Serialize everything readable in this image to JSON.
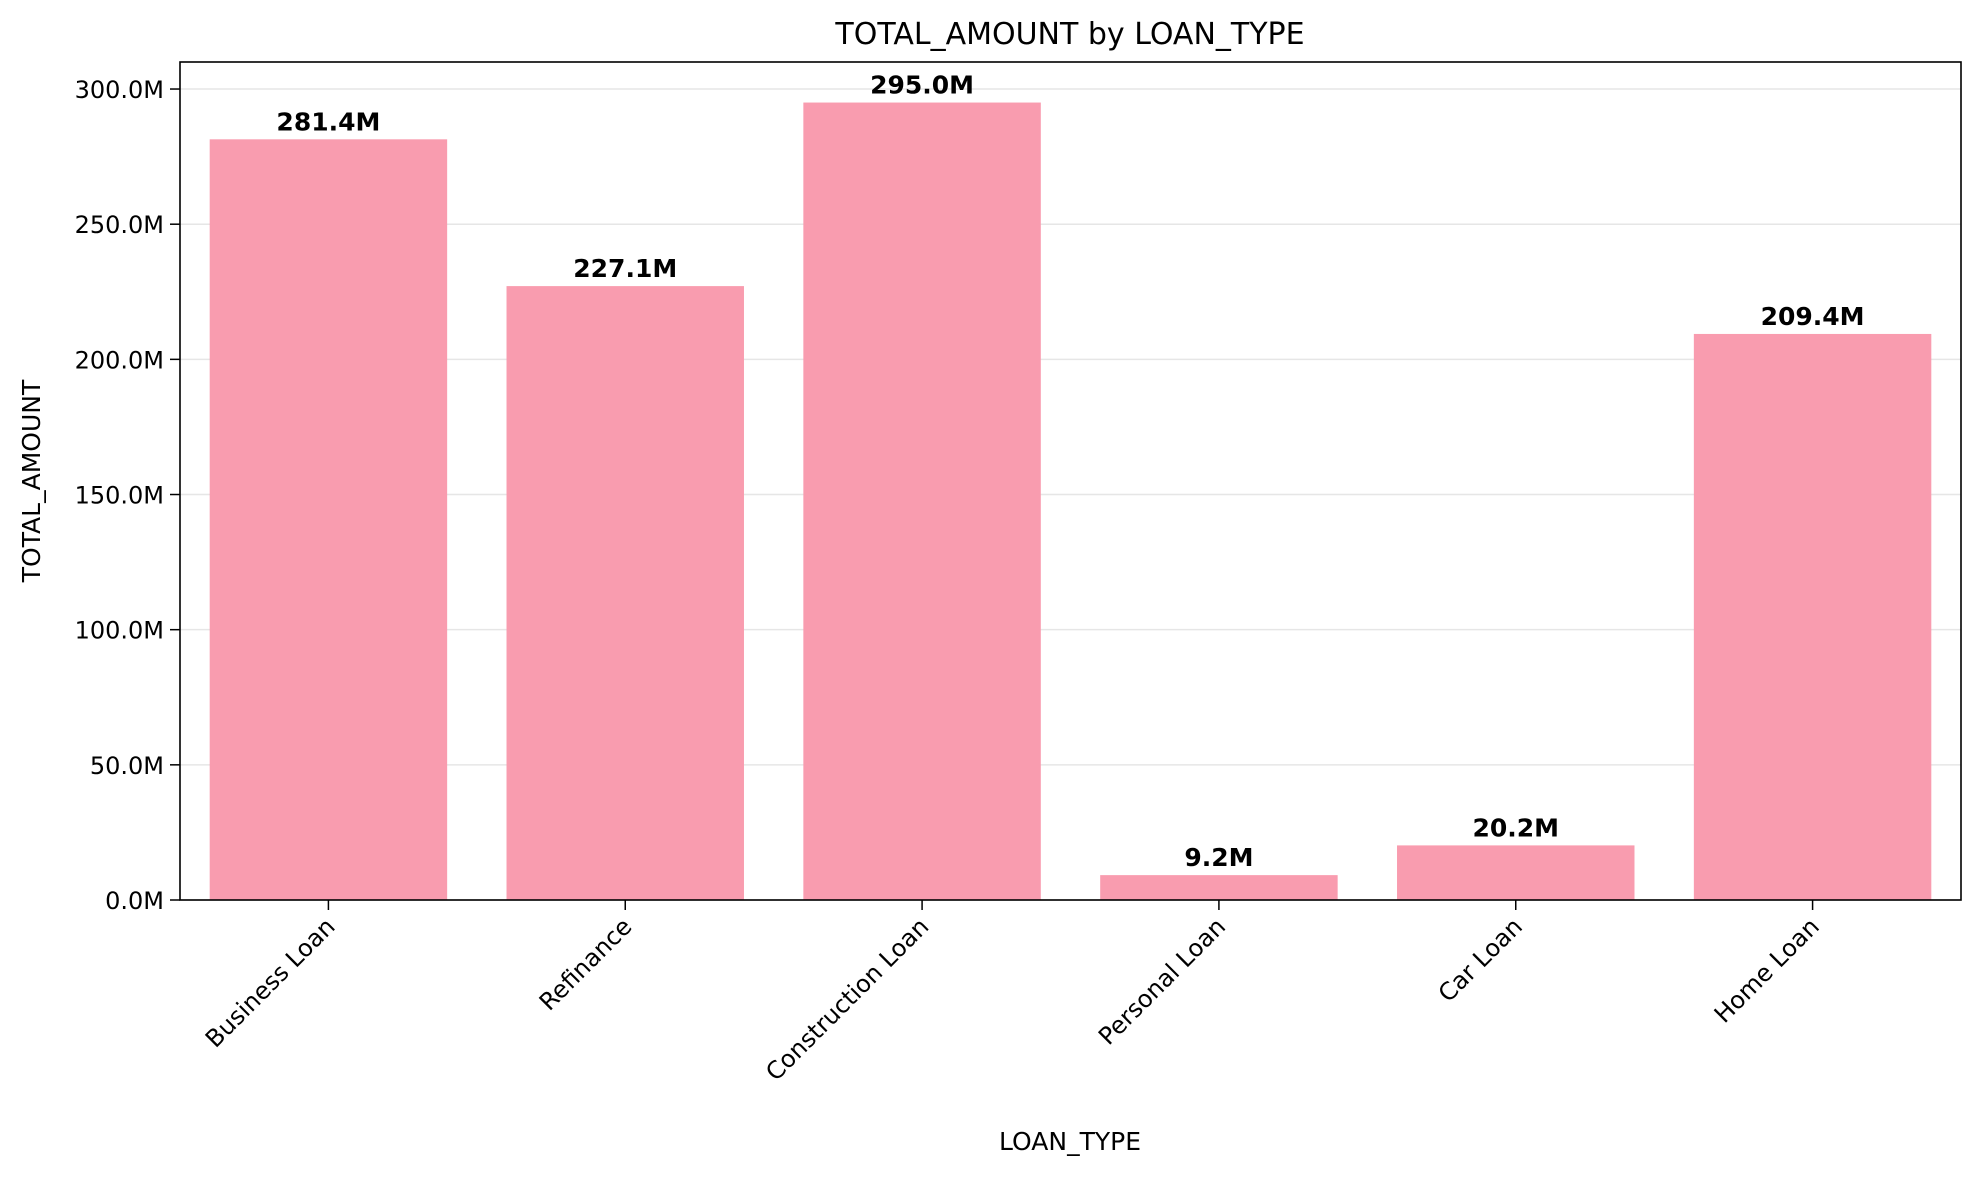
{
  "chart_data": {
    "type": "bar",
    "title": "TOTAL_AMOUNT by LOAN_TYPE",
    "xlabel": "LOAN_TYPE",
    "ylabel": "TOTAL_AMOUNT",
    "categories": [
      "Business Loan",
      "Refinance",
      "Construction Loan",
      "Personal Loan",
      "Car Loan",
      "Home Loan"
    ],
    "values": [
      281.4,
      227.1,
      295.0,
      9.2,
      20.2,
      209.4
    ],
    "value_labels": [
      "281.4M",
      "227.1M",
      "295.0M",
      "9.2M",
      "20.2M",
      "209.4M"
    ],
    "value_unit": "M",
    "ylim": [
      0,
      310
    ],
    "yticks": [
      0,
      50,
      100,
      150,
      200,
      250,
      300
    ],
    "ytick_labels": [
      "0.0M",
      "50.0M",
      "100.0M",
      "150.0M",
      "200.0M",
      "250.0M",
      "300.0M"
    ],
    "grid": "y",
    "legend": "none",
    "bar_color": "#f99caf"
  }
}
